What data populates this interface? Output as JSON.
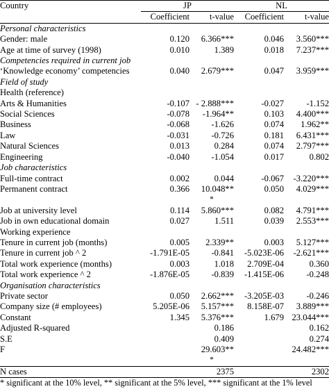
{
  "header": {
    "country": "Country",
    "jp": "JP",
    "nl": "NL",
    "coefficient": "Coefficient",
    "tvalue": "t-value"
  },
  "rows": [
    {
      "label": "Personal characteristics",
      "section": true
    },
    {
      "label": "Gender: male",
      "jp_c": "0.120",
      "jp_t": "6.366***",
      "nl_c": "0.046",
      "nl_t": "3.560***"
    },
    {
      "label": "Age at time of survey (1998)",
      "jp_c": "0.010",
      "jp_t": "1.389",
      "nl_c": "0.018",
      "nl_t": "7.237***"
    },
    {
      "label": "Competencies required in current job",
      "section": true
    },
    {
      "label": "‘Knowledge economy’ competencies",
      "jp_c": "0.040",
      "jp_t": "2.679***",
      "nl_c": "0.047",
      "nl_t": "3.959***"
    },
    {
      "label": "Field of study",
      "section": true
    },
    {
      "label": "Health (reference)"
    },
    {
      "label": "Arts & Humanities",
      "jp_c": "-0.107",
      "jp_t": "- 2.888***",
      "nl_c": "-0.027",
      "nl_t": "-1.152"
    },
    {
      "label": "Social Sciences",
      "jp_c": "-0.078",
      "jp_t": "-1.964**",
      "nl_c": "0.103",
      "nl_t": "4.400***"
    },
    {
      "label": "Business",
      "jp_c": "-0.068",
      "jp_t": "-1.626",
      "nl_c": "0.074",
      "nl_t": "1.962**"
    },
    {
      "label": "Law",
      "jp_c": "-0.031",
      "jp_t": "-0.726",
      "nl_c": "0.181",
      "nl_t": "6.431***"
    },
    {
      "label": "Natural Sciences",
      "jp_c": "0.013",
      "jp_t": "0.284",
      "nl_c": "0.074",
      "nl_t": "2.797***"
    },
    {
      "label": "Engineering",
      "jp_c": "-0.040",
      "jp_t": "-1.054",
      "nl_c": "0.017",
      "nl_t": "0.802"
    },
    {
      "label": "Job characteristics",
      "section": true
    },
    {
      "label": "Full-time contract",
      "jp_c": "0.002",
      "jp_t": "0.044",
      "nl_c": "-0.067",
      "nl_t": "-3.220***"
    },
    {
      "label": "Permanent contract",
      "jp_c": "0.366",
      "jp_t": "10.048**",
      "jp_t_star": "*",
      "nl_c": "0.050",
      "nl_t": "4.029***"
    },
    {
      "label": "Job at university level",
      "jp_c": "0.114",
      "jp_t": "5.860***",
      "nl_c": "0.082",
      "nl_t": "4.791***"
    },
    {
      "label": "Job in own educational domain",
      "jp_c": "0.027",
      "jp_t": "1.511",
      "nl_c": "0.039",
      "nl_t": "2.553***"
    },
    {
      "label": "Working experience"
    },
    {
      "label": "Tenure in current job (months)",
      "jp_c": "0.005",
      "jp_t": "2.339**",
      "nl_c": "0.003",
      "nl_t": "5.127***"
    },
    {
      "label": "Tenure in current job ^ 2",
      "jp_c": "-1.791E-05",
      "jp_t": "-0.841",
      "nl_c": "-5.023E-06",
      "nl_t": "-2.621***"
    },
    {
      "label": "Total work experience (months)",
      "jp_c": "0.003",
      "jp_t": "1.018",
      "nl_c": "2.709E-04",
      "nl_t": "0.360"
    },
    {
      "label": "Total work experience ^ 2",
      "jp_c": "-1.876E-05",
      "jp_t": "-0.839",
      "nl_c": "-1.415E-06",
      "nl_t": "-0.248"
    },
    {
      "label": "Organisation characteristics",
      "section": true
    },
    {
      "label": "Private sector",
      "jp_c": "0.050",
      "jp_t": "2.662***",
      "nl_c": "-3.205E-03",
      "nl_t": "-0.246"
    },
    {
      "label": "Company size (# employees)",
      "jp_c": "5.205E-06",
      "jp_t": "5.157***",
      "nl_c": "8.158E-07",
      "nl_t": "3.889***"
    },
    {
      "label": "Constant",
      "jp_c": "1.345",
      "jp_t": "5.376***",
      "nl_c": "1.679",
      "nl_t": "23.044***"
    },
    {
      "label": "Adjusted R-squared",
      "jp_t": "0.186",
      "nl_t": "0.162"
    },
    {
      "label": "S.E",
      "jp_t": "0.409",
      "nl_t": "0.274"
    },
    {
      "label": "F",
      "jp_t": "29.603**",
      "jp_t_star": "*",
      "nl_t": "24.482***"
    },
    {
      "label": "N cases",
      "jp_t": "2375",
      "nl_t": "2302"
    }
  ],
  "footnote": "* significant at the 10% level, ** significant at the 5% level, *** significant at the 1% level"
}
